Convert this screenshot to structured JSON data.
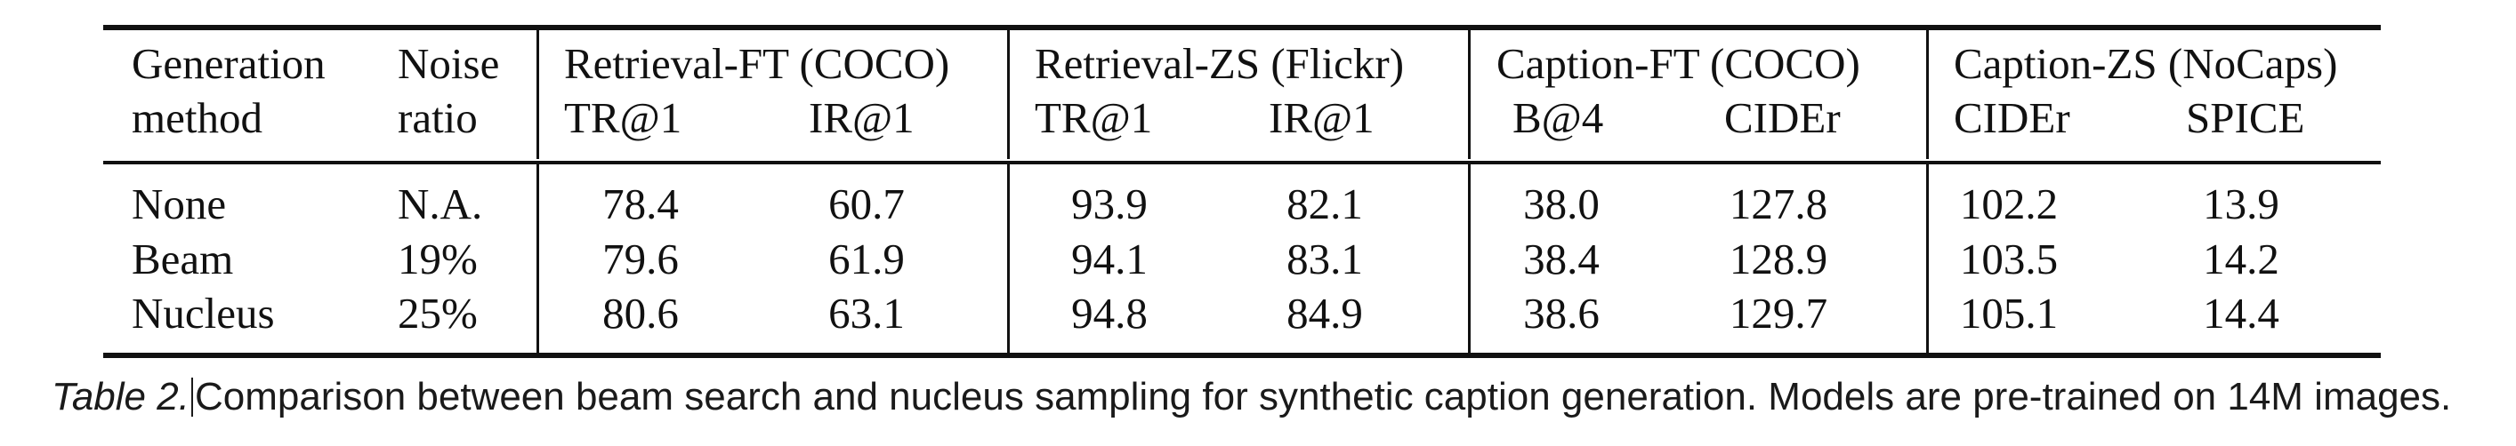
{
  "table": {
    "header": {
      "col1_line1": "Generation",
      "col1_line2": "method",
      "col2_line1": "Noise",
      "col2_line2": "ratio",
      "groups": [
        {
          "title": "Retrieval-FT (COCO)",
          "sub": [
            "TR@1",
            "IR@1"
          ]
        },
        {
          "title": "Retrieval-ZS (Flickr)",
          "sub": [
            "TR@1",
            "IR@1"
          ]
        },
        {
          "title": "Caption-FT (COCO)",
          "sub": [
            "B@4",
            "CIDEr"
          ]
        },
        {
          "title": "Caption-ZS (NoCaps)",
          "sub": [
            "CIDEr",
            "SPICE"
          ]
        }
      ]
    },
    "rows": [
      {
        "method": "None",
        "noise": "N.A.",
        "values": [
          "78.4",
          "60.7",
          "93.9",
          "82.1",
          "38.0",
          "127.8",
          "102.2",
          "13.9"
        ]
      },
      {
        "method": "Beam",
        "noise": "19%",
        "values": [
          "79.6",
          "61.9",
          "94.1",
          "83.1",
          "38.4",
          "128.9",
          "103.5",
          "14.2"
        ]
      },
      {
        "method": "Nucleus",
        "noise": "25%",
        "values": [
          "80.6",
          "63.1",
          "94.8",
          "84.9",
          "38.6",
          "129.7",
          "105.1",
          "14.4"
        ]
      }
    ]
  },
  "caption": {
    "label": "Table 2.",
    "text": "Comparison between beam search and nucleus sampling for synthetic caption generation. Models are pre-trained on 14M images."
  }
}
